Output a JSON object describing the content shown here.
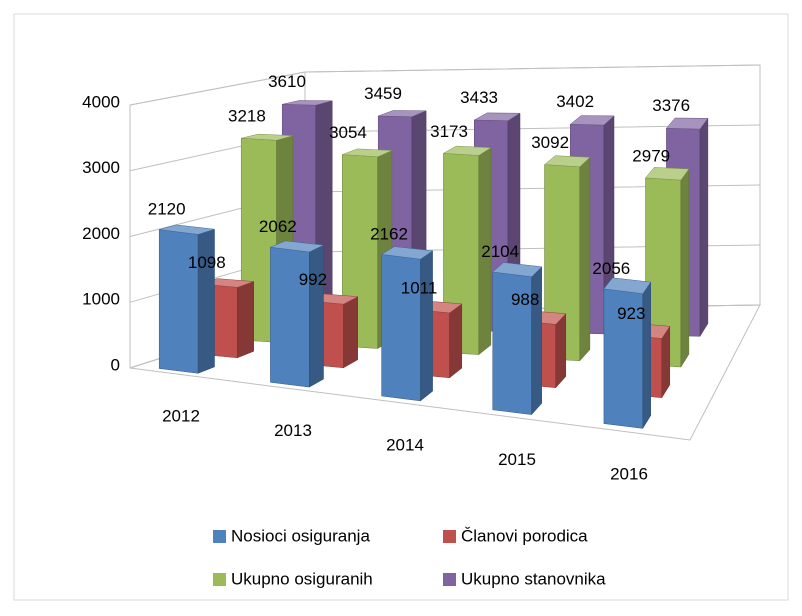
{
  "chart_data": {
    "type": "bar3d",
    "categories": [
      "2012",
      "2013",
      "2014",
      "2015",
      "2016"
    ],
    "series": [
      {
        "name": "Nosioci osiguranja",
        "color": "#4f81bd",
        "values": [
          2120,
          2062,
          2162,
          2104,
          2056
        ]
      },
      {
        "name": "Članovi porodica",
        "color": "#c0504d",
        "values": [
          1098,
          992,
          1011,
          988,
          923
        ]
      },
      {
        "name": "Ukupno osiguranih",
        "color": "#9bbb59",
        "values": [
          3218,
          3054,
          3173,
          3092,
          2979
        ]
      },
      {
        "name": "Ukupno stanovnika",
        "color": "#8064a2",
        "values": [
          3610,
          3459,
          3433,
          3402,
          3376
        ]
      }
    ],
    "ylim": [
      0,
      4000
    ],
    "yticks": [
      0,
      1000,
      2000,
      3000,
      4000
    ],
    "grid": true,
    "legend": "bottom"
  }
}
